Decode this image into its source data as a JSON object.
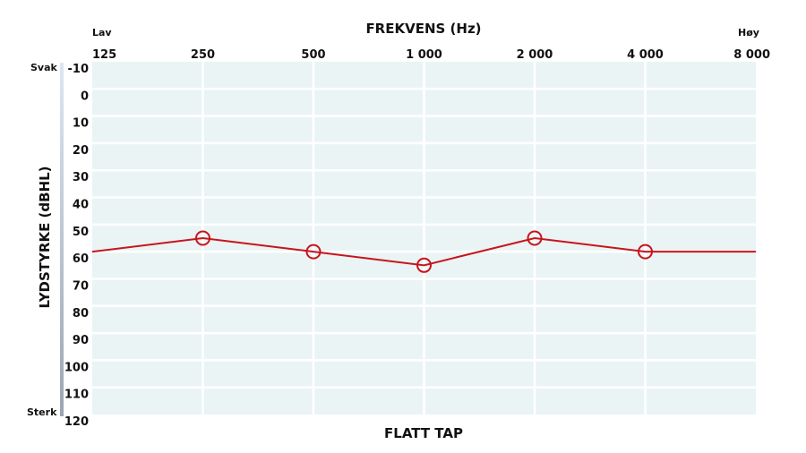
{
  "chart_data": {
    "type": "line",
    "title": "FREKVENS (Hz)",
    "subtitle": "FLATT TAP",
    "xlabel": "FREKVENS (Hz)",
    "ylabel": "LYDSTYRKE (dBHL)",
    "x_low_label": "Lav",
    "x_high_label": "Høy",
    "y_top_label": "Svak",
    "y_bottom_label": "Sterk",
    "x_scale": "log2",
    "x_ticks": [
      125,
      250,
      500,
      1000,
      2000,
      4000,
      8000
    ],
    "x_tick_labels": [
      "125",
      "250",
      "500",
      "1 000",
      "2 000",
      "4 000",
      "8 000"
    ],
    "y_ticks": [
      -10,
      0,
      10,
      20,
      30,
      40,
      50,
      60,
      70,
      80,
      90,
      100,
      110,
      120
    ],
    "y_tick_labels": [
      "-10",
      "0",
      "10",
      "20",
      "30",
      "40",
      "50",
      "60",
      "70",
      "80",
      "90",
      "100",
      "110",
      "120"
    ],
    "ylim": [
      -10,
      120
    ],
    "y_inverted": true,
    "grid": true,
    "series": [
      {
        "x": [
          125,
          250,
          500,
          1000,
          2000,
          4000,
          8000
        ],
        "y": [
          60,
          55,
          60,
          65,
          55,
          60,
          60
        ],
        "markers": [
          false,
          true,
          true,
          true,
          true,
          true,
          false
        ],
        "marker": "open-circle"
      }
    ],
    "colors": {
      "line": "#c8141c",
      "plot_bg": "#eaf4f4",
      "grid": "#ffffff"
    }
  }
}
